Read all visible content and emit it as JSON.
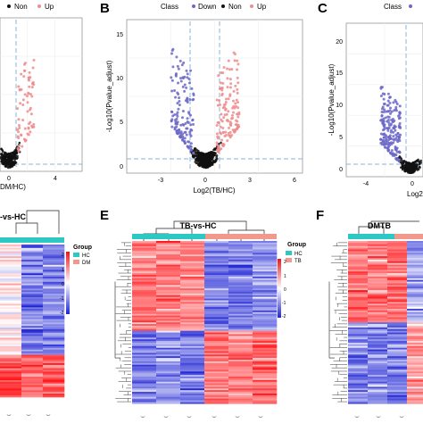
{
  "panels": {
    "A": {
      "letter": "",
      "legend_items": [
        "Non",
        "Up"
      ],
      "xlabel": "DM/HC)",
      "xticks": [
        "0",
        "4"
      ]
    },
    "B": {
      "letter": "B",
      "legend_title": "Class",
      "legend_items": [
        "Down",
        "Non",
        "Up"
      ],
      "ylabel": "-Log10(Pvalue_adjust)",
      "xlabel": "Log2(TB/HC)",
      "xticks": [
        "-3",
        "0",
        "3",
        "6"
      ],
      "yticks": [
        "0",
        "5",
        "10",
        "15"
      ]
    },
    "C": {
      "letter": "C",
      "legend_title": "Class",
      "ylabel": "-Log10(Pvalue_adjust)",
      "xlabel": "Log2",
      "xticks": [
        "-4",
        "0"
      ],
      "yticks": [
        "0",
        "5",
        "10",
        "15",
        "20"
      ]
    },
    "D": {
      "title": "-vs-HC",
      "legend_title": "Group",
      "groups": [
        "HC",
        "DM"
      ],
      "scale": [
        "2",
        "1",
        "0",
        "-1",
        "-2"
      ]
    },
    "E": {
      "letter": "E",
      "title": "TB-vs-HC",
      "legend_title": "Group",
      "groups": [
        "HC",
        "TB"
      ],
      "scale": [
        "2",
        "1",
        "0",
        "-1",
        "-2"
      ]
    },
    "F": {
      "letter": "F",
      "title": "DMTB"
    }
  },
  "colors": {
    "down": "#6b67c8",
    "non": "#111111",
    "up": "#f08c8c",
    "hc": "#2ec8c4",
    "dm": "#f2998e",
    "tb": "#f2998e",
    "high": "#e8171b",
    "mid": "#ffffff",
    "low": "#1f24d4"
  }
}
